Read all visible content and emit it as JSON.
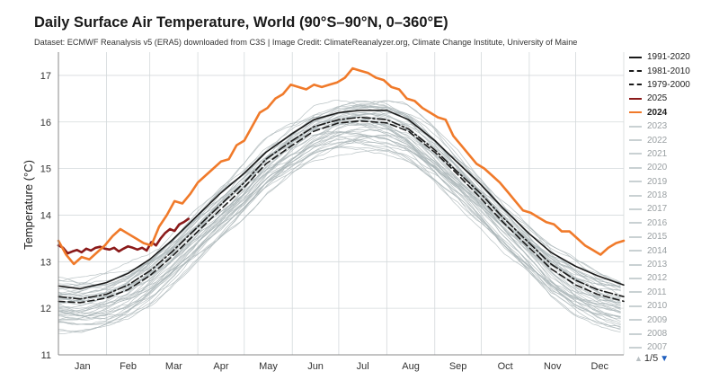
{
  "chart_data": {
    "type": "line",
    "title": "Daily Surface Air Temperature, World (90°S–90°N, 0–360°E)",
    "subtitle": "Dataset: ECMWF Reanalysis v5 (ERA5) downloaded from C3S | Image Credit: ClimateReanalyzer.org, Climate Change Institute, University of Maine",
    "ylabel": "Temperature (°C)",
    "xlabel": "",
    "ylim": [
      11,
      17.5
    ],
    "yticks": [
      11,
      12,
      13,
      14,
      15,
      16,
      17
    ],
    "xlim": [
      1,
      366
    ],
    "months": [
      "Jan",
      "Feb",
      "Mar",
      "Apr",
      "May",
      "Jun",
      "Jul",
      "Aug",
      "Sep",
      "Oct",
      "Nov",
      "Dec"
    ],
    "grid": true,
    "legend_placement": "right",
    "series": [
      {
        "name": "1991-2020",
        "style": "solid",
        "color": "#1a1a1a",
        "x": [
          1,
          15,
          32,
          46,
          60,
          74,
          91,
          105,
          121,
          135,
          152,
          166,
          182,
          196,
          213,
          227,
          244,
          258,
          274,
          288,
          305,
          319,
          335,
          349,
          366
        ],
        "y": [
          12.48,
          12.42,
          12.55,
          12.75,
          13.05,
          13.45,
          14.0,
          14.45,
          14.9,
          15.35,
          15.75,
          16.05,
          16.2,
          16.25,
          16.25,
          16.05,
          15.6,
          15.15,
          14.65,
          14.15,
          13.6,
          13.2,
          12.9,
          12.7,
          12.5
        ]
      },
      {
        "name": "1981-2010",
        "style": "dashdot",
        "color": "#1a1a1a",
        "x": [
          1,
          15,
          32,
          46,
          60,
          74,
          91,
          105,
          121,
          135,
          152,
          166,
          182,
          196,
          213,
          227,
          244,
          258,
          274,
          288,
          305,
          319,
          335,
          349,
          366
        ],
        "y": [
          12.25,
          12.2,
          12.3,
          12.5,
          12.8,
          13.2,
          13.75,
          14.2,
          14.7,
          15.2,
          15.6,
          15.9,
          16.05,
          16.1,
          16.05,
          15.85,
          15.4,
          14.95,
          14.45,
          13.95,
          13.4,
          12.95,
          12.6,
          12.4,
          12.25
        ]
      },
      {
        "name": "1979-2000",
        "style": "dashed",
        "color": "#1a1a1a",
        "x": [
          1,
          15,
          32,
          46,
          60,
          74,
          91,
          105,
          121,
          135,
          152,
          166,
          182,
          196,
          213,
          227,
          244,
          258,
          274,
          288,
          305,
          319,
          335,
          349,
          366
        ],
        "y": [
          12.15,
          12.12,
          12.22,
          12.4,
          12.7,
          13.1,
          13.65,
          14.1,
          14.6,
          15.1,
          15.5,
          15.8,
          15.98,
          16.02,
          15.98,
          15.8,
          15.35,
          14.9,
          14.35,
          13.85,
          13.3,
          12.85,
          12.5,
          12.3,
          12.15
        ]
      },
      {
        "name": "2025",
        "style": "solid",
        "color": "#8b1a1a",
        "x": [
          1,
          4,
          7,
          10,
          13,
          16,
          19,
          22,
          25,
          28,
          31,
          34,
          37,
          40,
          43,
          46,
          49,
          52,
          55,
          58,
          61,
          64,
          67,
          70,
          73,
          76,
          79,
          82,
          85
        ],
        "y": [
          13.35,
          13.3,
          13.18,
          13.22,
          13.25,
          13.2,
          13.28,
          13.24,
          13.3,
          13.32,
          13.28,
          13.26,
          13.3,
          13.22,
          13.28,
          13.33,
          13.3,
          13.26,
          13.3,
          13.24,
          13.42,
          13.35,
          13.5,
          13.62,
          13.7,
          13.66,
          13.8,
          13.85,
          13.92
        ]
      },
      {
        "name": "2024",
        "style": "solid",
        "color": "#f07a2a",
        "x": [
          1,
          6,
          11,
          16,
          21,
          26,
          31,
          36,
          41,
          46,
          51,
          56,
          61,
          66,
          71,
          76,
          81,
          86,
          91,
          96,
          101,
          106,
          111,
          116,
          121,
          126,
          131,
          136,
          141,
          146,
          151,
          156,
          161,
          166,
          171,
          176,
          181,
          186,
          191,
          196,
          201,
          206,
          211,
          216,
          221,
          226,
          231,
          236,
          241,
          246,
          251,
          256,
          261,
          266,
          271,
          276,
          281,
          286,
          291,
          296,
          301,
          306,
          311,
          316,
          321,
          326,
          331,
          336,
          341,
          346,
          351,
          356,
          361,
          366
        ],
        "y": [
          13.45,
          13.15,
          12.95,
          13.1,
          13.05,
          13.2,
          13.35,
          13.55,
          13.7,
          13.6,
          13.5,
          13.4,
          13.35,
          13.75,
          14.0,
          14.3,
          14.25,
          14.45,
          14.7,
          14.85,
          15.0,
          15.15,
          15.2,
          15.5,
          15.6,
          15.9,
          16.2,
          16.3,
          16.5,
          16.6,
          16.8,
          16.75,
          16.7,
          16.8,
          16.75,
          16.8,
          16.85,
          16.95,
          17.15,
          17.1,
          17.05,
          16.95,
          16.9,
          16.75,
          16.7,
          16.5,
          16.45,
          16.3,
          16.2,
          16.1,
          16.05,
          15.7,
          15.5,
          15.3,
          15.1,
          15.0,
          14.85,
          14.7,
          14.5,
          14.3,
          14.1,
          14.05,
          13.95,
          13.85,
          13.8,
          13.65,
          13.65,
          13.5,
          13.35,
          13.25,
          13.15,
          13.3,
          13.4,
          13.45
        ]
      }
    ],
    "background_years_label_list": [
      "2023",
      "2022",
      "2021",
      "2020",
      "2019",
      "2018",
      "2017",
      "2016",
      "2015",
      "2014",
      "2013",
      "2012",
      "2011",
      "2010",
      "2009",
      "2008",
      "2007"
    ]
  },
  "legend": {
    "items": [
      {
        "label": "1991-2020",
        "color": "#1a1a1a",
        "style": "solid"
      },
      {
        "label": "1981-2010",
        "color": "#1a1a1a",
        "style": "dashdot"
      },
      {
        "label": "1979-2000",
        "color": "#1a1a1a",
        "style": "dashed"
      },
      {
        "label": "2025",
        "color": "#8b1a1a",
        "style": "solid"
      },
      {
        "label": "2024",
        "color": "#f07a2a",
        "style": "solid"
      },
      {
        "label": "2023",
        "color": "#c9d1d3",
        "style": "solid"
      },
      {
        "label": "2022",
        "color": "#c9d1d3",
        "style": "solid"
      },
      {
        "label": "2021",
        "color": "#c9d1d3",
        "style": "solid"
      },
      {
        "label": "2020",
        "color": "#c9d1d3",
        "style": "solid"
      },
      {
        "label": "2019",
        "color": "#c9d1d3",
        "style": "solid"
      },
      {
        "label": "2018",
        "color": "#c9d1d3",
        "style": "solid"
      },
      {
        "label": "2017",
        "color": "#c9d1d3",
        "style": "solid"
      },
      {
        "label": "2016",
        "color": "#c9d1d3",
        "style": "solid"
      },
      {
        "label": "2015",
        "color": "#c9d1d3",
        "style": "solid"
      },
      {
        "label": "2014",
        "color": "#c9d1d3",
        "style": "solid"
      },
      {
        "label": "2013",
        "color": "#c9d1d3",
        "style": "solid"
      },
      {
        "label": "2012",
        "color": "#c9d1d3",
        "style": "solid"
      },
      {
        "label": "2011",
        "color": "#c9d1d3",
        "style": "solid"
      },
      {
        "label": "2010",
        "color": "#c9d1d3",
        "style": "solid"
      },
      {
        "label": "2009",
        "color": "#c9d1d3",
        "style": "solid"
      },
      {
        "label": "2008",
        "color": "#c9d1d3",
        "style": "solid"
      },
      {
        "label": "2007",
        "color": "#c9d1d3",
        "style": "solid"
      }
    ],
    "pager": {
      "text": "1/5",
      "up_icon": "triangle-up-icon",
      "down_icon": "triangle-down-icon"
    }
  },
  "colors": {
    "background_years": "#a9b4b6",
    "grid": "#d4d9db",
    "axis": "#888888"
  }
}
